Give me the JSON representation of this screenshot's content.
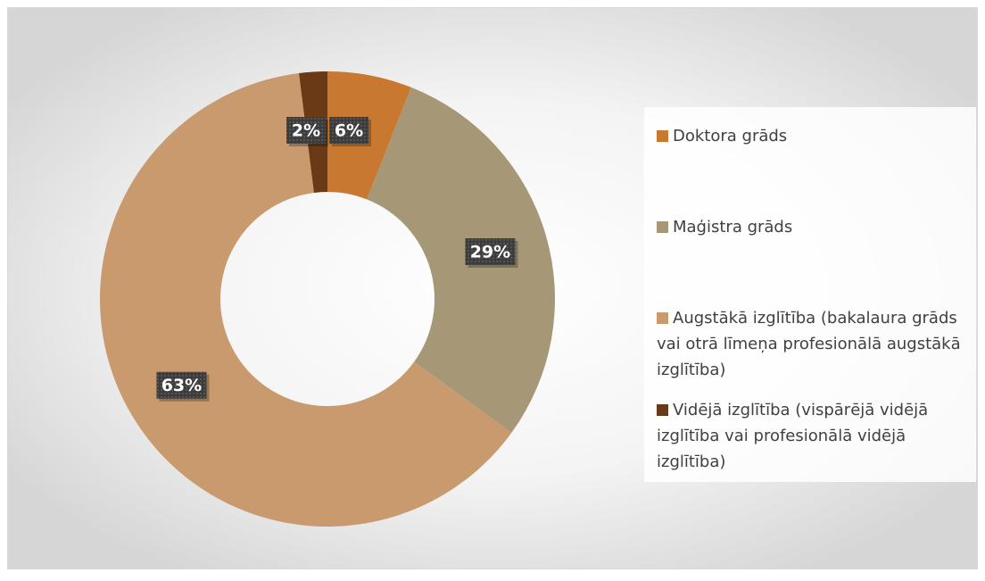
{
  "chart_data": {
    "type": "donut",
    "categories": [
      "Doktora grāds",
      "Maģistra grāds",
      "Augstākā izglītība (bakalaura grāds vai otrā līmeņa profesionālā augstākā izglītība)",
      "Vidējā izglītība (vispārējā vidējā izglītība vai profesionālā vidējā izglītība)"
    ],
    "values": [
      6,
      29,
      63,
      2
    ],
    "value_labels": [
      "6%",
      "29%",
      "63%",
      "2%"
    ],
    "colors": [
      "#c8782f",
      "#a69876",
      "#c89a6d",
      "#6a3915"
    ],
    "legend": "right"
  }
}
